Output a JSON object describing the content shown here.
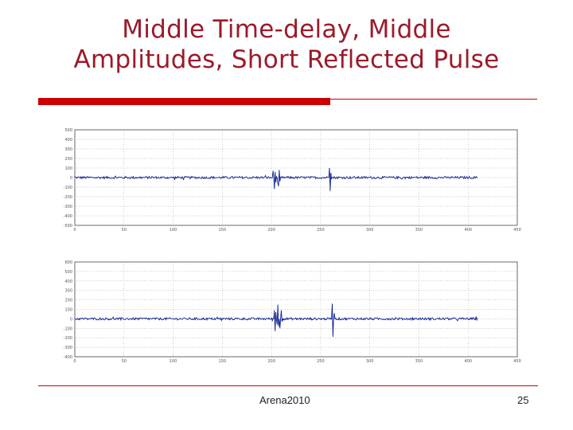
{
  "slide": {
    "title_line1": "Middle Time-delay, Middle",
    "title_line2": "Amplitudes, Short Reflected Pulse",
    "footer_center": "Arena2010",
    "page_number": "25",
    "accent_color": "#cc0000",
    "title_color": "#9c1a2a"
  },
  "chart_data": [
    {
      "type": "line",
      "title": "",
      "xlabel": "",
      "ylabel": "",
      "xlim": [
        0,
        450
      ],
      "ylim": [
        -500,
        500
      ],
      "xticks": [
        0,
        50,
        100,
        150,
        200,
        250,
        300,
        350,
        400,
        450
      ],
      "yticks": [
        -500,
        -400,
        -300,
        -200,
        -100,
        0,
        100,
        200,
        300,
        400,
        500
      ],
      "ytick_labels": [
        "-500",
        "-400",
        "-300",
        "-200",
        "-100",
        "0",
        "100",
        "200",
        "300",
        "400",
        "500"
      ],
      "grid": true,
      "line_color": "#0a1f8f",
      "signal": {
        "x_range": [
          0,
          410
        ],
        "noise_amplitude": 12,
        "pulses": [
          {
            "x": 201,
            "values": [
              0,
              70,
              -120,
              60,
              -50,
              110,
              -60,
              40,
              0
            ]
          },
          {
            "x": 206,
            "values": [
              0,
              -90,
              80,
              -40,
              0
            ]
          },
          {
            "x": 258,
            "values": [
              0,
              100,
              -140,
              50,
              0
            ]
          }
        ]
      }
    },
    {
      "type": "line",
      "title": "",
      "xlabel": "",
      "ylabel": "",
      "xlim": [
        0,
        450
      ],
      "ylim": [
        -400,
        600
      ],
      "xticks": [
        0,
        50,
        100,
        150,
        200,
        250,
        300,
        350,
        400,
        450
      ],
      "yticks": [
        -400,
        -300,
        -200,
        -100,
        0,
        100,
        200,
        300,
        400,
        500,
        600
      ],
      "ytick_labels": [
        "-400",
        "-300",
        "-200",
        "-100",
        "0",
        "100",
        "200",
        "300",
        "400",
        "500",
        "600"
      ],
      "grid": true,
      "line_color": "#0a1f8f",
      "signal": {
        "x_range": [
          0,
          410
        ],
        "noise_amplitude": 12,
        "pulses": [
          {
            "x": 202,
            "values": [
              0,
              90,
              -130,
              70,
              -60,
              150,
              -80,
              40,
              0
            ]
          },
          {
            "x": 208,
            "values": [
              0,
              -100,
              90,
              -30,
              0
            ]
          },
          {
            "x": 261,
            "values": [
              0,
              160,
              -190,
              60,
              0
            ]
          }
        ]
      }
    }
  ]
}
